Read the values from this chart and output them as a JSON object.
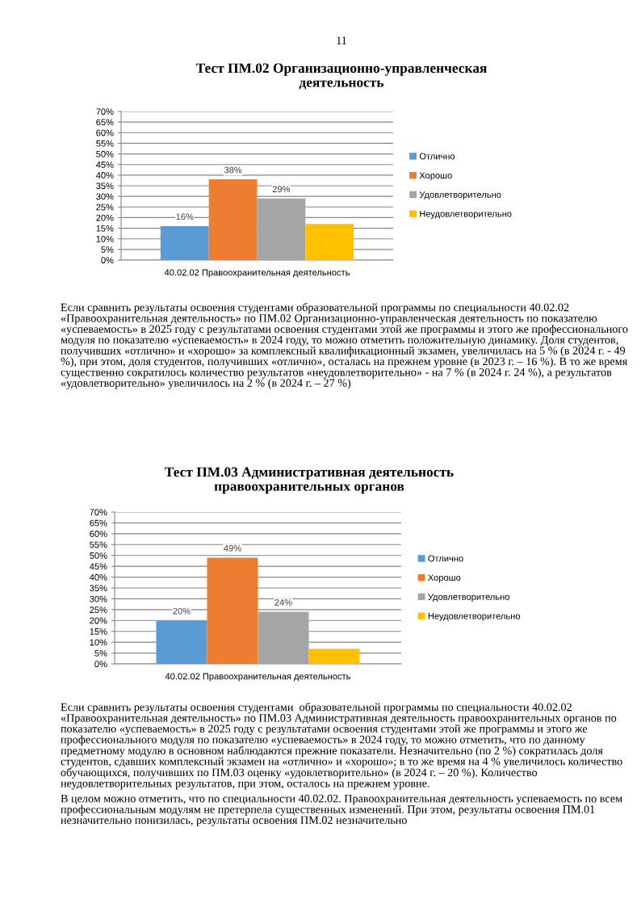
{
  "chart_data": [
    {
      "type": "bar",
      "title": "Тест ПМ.02 Организационно-управленческая\nдеятельность",
      "categories": [
        "40.02.02 Правоохранительная деятельность"
      ],
      "series": [
        {
          "name": "Отлично",
          "color": "#5b9bd5",
          "values": [
            16
          ],
          "value_labels": [
            "16%"
          ]
        },
        {
          "name": "Хорошо",
          "color": "#ed7d31",
          "values": [
            38
          ],
          "value_labels": [
            "38%"
          ]
        },
        {
          "name": "Удовлетворительно",
          "color": "#a5a5a5",
          "values": [
            29
          ],
          "value_labels": [
            "29%"
          ]
        },
        {
          "name": "Неудовлетворительно",
          "color": "#ffc000",
          "values": [
            17
          ],
          "value_labels": [
            null
          ]
        }
      ],
      "ylim": [
        0,
        70
      ],
      "yticks": [
        {
          "value": 0,
          "label": "0%"
        },
        {
          "value": 5,
          "label": "5%"
        },
        {
          "value": 10,
          "label": "10%"
        },
        {
          "value": 15,
          "label": "15%"
        },
        {
          "value": 20,
          "label": "20%"
        },
        {
          "value": 25,
          "label": "25%"
        },
        {
          "value": 30,
          "label": "30%"
        },
        {
          "value": 35,
          "label": "35%"
        },
        {
          "value": 40,
          "label": "40%"
        },
        {
          "value": 45,
          "label": "45%"
        },
        {
          "value": 50,
          "label": "50%"
        },
        {
          "value": 55,
          "label": "55%"
        },
        {
          "value": 60,
          "label": "60%"
        },
        {
          "value": 65,
          "label": "65%"
        },
        {
          "value": 70,
          "label": "70%"
        }
      ],
      "grid": "y",
      "legend": "right",
      "annotations": [
        "11",
        "Если сравнить результаты освоения студентами образовательной программы по специальности 40.02.02 «Правоохранительная деятельность» по ПМ.02 Организационно-управленческая деятельность по показателю «успеваемость» в 2025 году с результатами освоения студентами этой же программы и этого же профессионального модуля по показателю «успеваемость» в 2024 году, то можно отметить положительную динамику. Доля студентов, получивших «отлично» и «хорошо» за комплексный квалификационный экзамен, увеличилась на 5 % (в 2024 г. - 49 %), при этом, доля студентов, получивших «отлично», осталась на прежнем уровне (в 2023 г. – 16 %). В то же время существенно сократилось количество результатов «неудовлетворительно» - на 7 % (в 2024 г. 24 %), а результатов «удовлетворительно» увеличилось на 2 % (в 2024 г. – 27 %)"
      ]
    },
    {
      "type": "bar",
      "title": "Тест ПМ.03 Административная деятельность\nправоохранительных органов",
      "categories": [
        "40.02.02 Правоохранительная деятельность"
      ],
      "series": [
        {
          "name": "Отлично",
          "color": "#5b9bd5",
          "values": [
            20
          ],
          "value_labels": [
            "20%"
          ]
        },
        {
          "name": "Хорошо",
          "color": "#ed7d31",
          "values": [
            49
          ],
          "value_labels": [
            "49%"
          ]
        },
        {
          "name": "Удовлетворительно",
          "color": "#a5a5a5",
          "values": [
            24
          ],
          "value_labels": [
            "24%"
          ]
        },
        {
          "name": "Неудовлетворительно",
          "color": "#ffc000",
          "values": [
            7
          ],
          "value_labels": [
            null
          ]
        }
      ],
      "ylim": [
        0,
        70
      ],
      "yticks": [
        {
          "value": 0,
          "label": "0%"
        },
        {
          "value": 5,
          "label": "5%"
        },
        {
          "value": 10,
          "label": "10%"
        },
        {
          "value": 15,
          "label": "15%"
        },
        {
          "value": 20,
          "label": "20%"
        },
        {
          "value": 25,
          "label": "25%"
        },
        {
          "value": 30,
          "label": "30%"
        },
        {
          "value": 35,
          "label": "35%"
        },
        {
          "value": 40,
          "label": "40%"
        },
        {
          "value": 45,
          "label": "45%"
        },
        {
          "value": 50,
          "label": "50%"
        },
        {
          "value": 55,
          "label": "55%"
        },
        {
          "value": 60,
          "label": "60%"
        },
        {
          "value": 65,
          "label": "65%"
        },
        {
          "value": 70,
          "label": "70%"
        }
      ],
      "grid": "y",
      "legend": "right",
      "annotations": [
        "Если сравнить результаты освоения студентами  образовательной программы по специальности 40.02.02 «Правоохранительная деятельность» по ПМ.03 Административная деятельность правоохранительных органов по показателю «успеваемость» в 2025 году с результатами освоения студентами этой же программы и этого же профессионального модуля по показателю «успеваемость» в 2024 году, то можно отметить, что по данному предметному модулю в основном наблюдаются прежние показатели. Незначительно (по 2 %) сократилась доля студентов, сдавших комплексный экзамен на «отлично» и «хорошо»; в то же время на 4 % увеличилось количество обучающихся, получивших по ПМ.03 оценку «удовлетворительно» (в 2024 г. – 20 %). Количество неудовлетворительных результатов, при этом, осталось на прежнем уровне.",
        "В целом можно отметить, что по специальности 40.02.02. Правоохранительная деятельность успеваемость по всем профессиональным модулям не претерпела существенных изменений. При этом, результаты освоения ПМ.01 незначительно понизилась, результаты освоения ПМ.02 незначительно"
      ]
    }
  ]
}
